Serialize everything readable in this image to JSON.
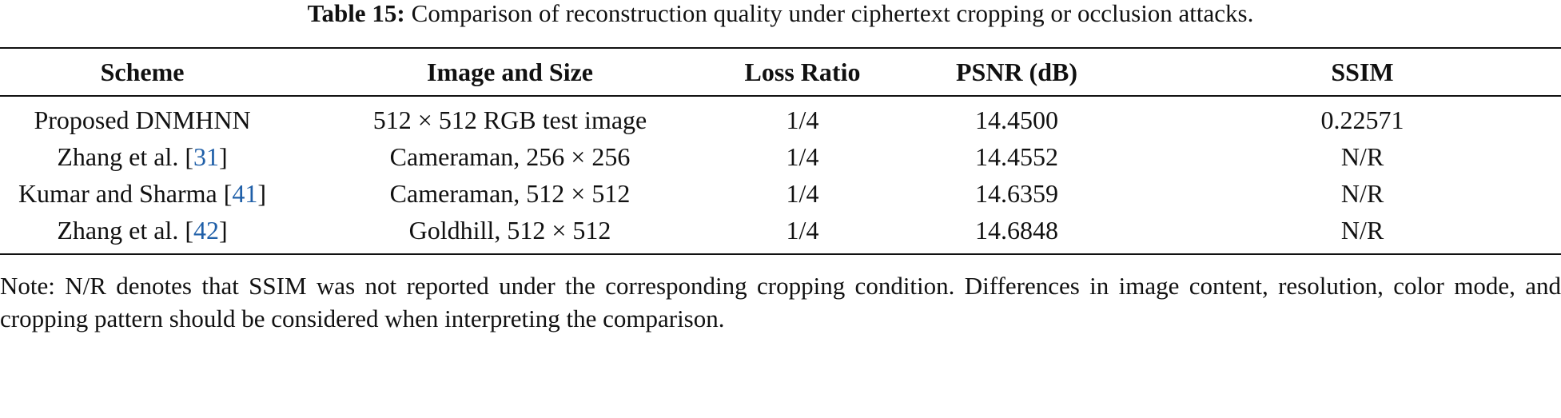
{
  "caption": {
    "label": "Table 15:",
    "text": "Comparison of reconstruction quality under ciphertext cropping or occlusion attacks."
  },
  "table": {
    "header": [
      "Scheme",
      "Image and Size",
      "Loss Ratio",
      "PSNR (dB)",
      "SSIM"
    ],
    "rows": [
      [
        {
          "text": "Proposed DNMHNN"
        },
        "512 × 512 RGB test image",
        "1/4",
        "14.4500",
        "0.22571"
      ],
      [
        {
          "text": "Zhang et al. [",
          "ref": "31",
          "close": "]"
        },
        "Cameraman, 256 × 256",
        "1/4",
        "14.4552",
        "N/R"
      ],
      [
        {
          "text": "Kumar and Sharma [",
          "ref": "41",
          "close": "]"
        },
        "Cameraman, 512 × 512",
        "1/4",
        "14.6359",
        "N/R"
      ],
      [
        {
          "text": "Zhang et al. [",
          "ref": "42",
          "close": "]"
        },
        "Goldhill, 512 × 512",
        "1/4",
        "14.6848",
        "N/R"
      ]
    ]
  },
  "note": "Note: N/R denotes that SSIM was not reported under the corresponding cropping condition. Differences in image content, resolution, color mode, and cropping pattern should be considered when interpreting the comparison."
}
